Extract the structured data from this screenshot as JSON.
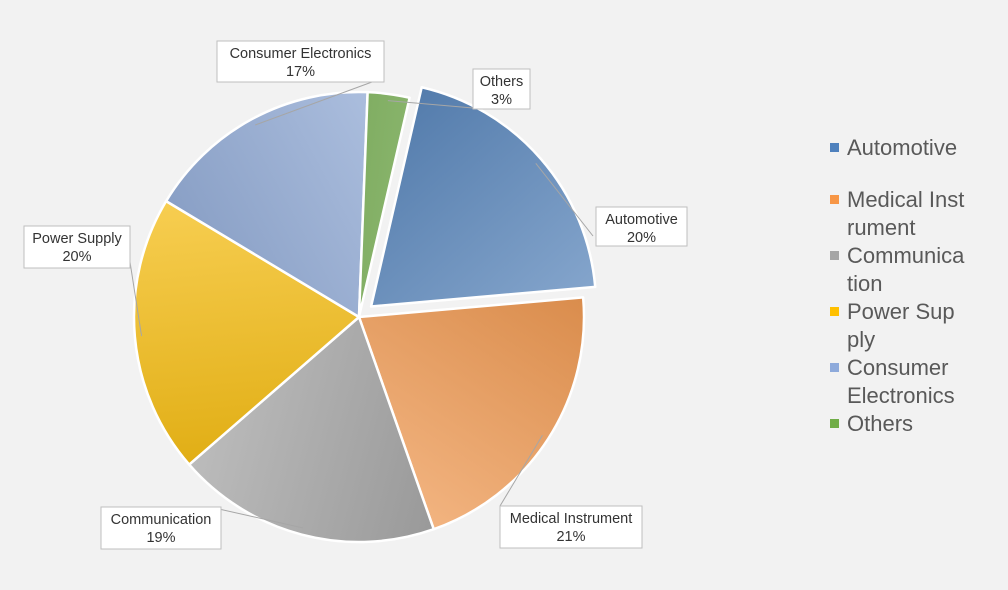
{
  "chart_data": {
    "type": "pie",
    "exploded_slice": "Automotive",
    "slices": [
      {
        "name": "Automotive",
        "value": 20,
        "label": "20%",
        "color": "#4f81bd"
      },
      {
        "name": "Medical Instrument",
        "value": 21,
        "label": "21%",
        "color": "#f79646"
      },
      {
        "name": "Communication",
        "value": 19,
        "label": "19%",
        "color": "#a5a5a5"
      },
      {
        "name": "Power Supply",
        "value": 20,
        "label": "20%",
        "color": "#ffc000"
      },
      {
        "name": "Consumer Electronics",
        "value": 17,
        "label": "17%",
        "color": "#8eaadb"
      },
      {
        "name": "Others",
        "value": 3,
        "label": "3%",
        "color": "#70ad47"
      }
    ],
    "legend": {
      "placement": "right",
      "entries": [
        "Automotive",
        "Medical Instrument",
        "Communication",
        "Power Supply",
        "Consumer Electronics",
        "Others"
      ]
    }
  }
}
